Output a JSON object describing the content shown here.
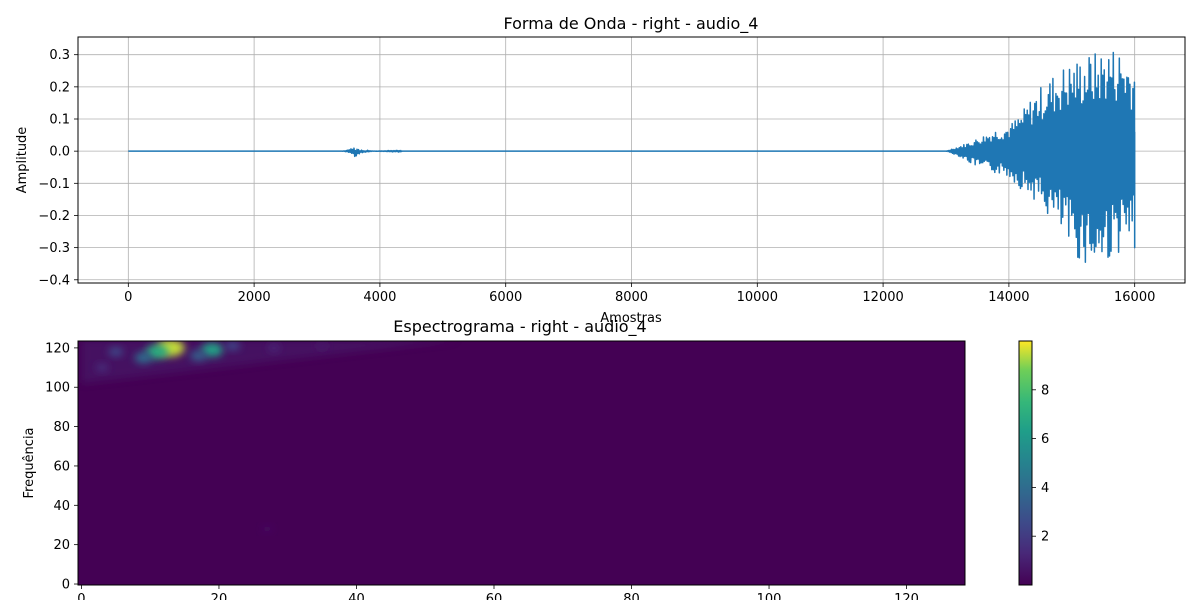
{
  "chart_data": [
    {
      "type": "line",
      "title": "Forma de Onda - right - audio_4",
      "xlabel": "Amostras",
      "ylabel": "Amplitude",
      "xlim": [
        -800,
        16800
      ],
      "ylim": [
        -0.41,
        0.355
      ],
      "xticks": [
        0,
        2000,
        4000,
        6000,
        8000,
        10000,
        12000,
        14000,
        16000
      ],
      "xtick_labels": [
        "0",
        "2000",
        "4000",
        "6000",
        "8000",
        "10000",
        "12000",
        "14000",
        "16000"
      ],
      "yticks": [
        0.3,
        0.2,
        0.1,
        0.0,
        -0.1,
        -0.2,
        -0.3,
        -0.4
      ],
      "ytick_labels": [
        "0.3",
        "0.2",
        "0.1",
        "0.0",
        "−0.1",
        "−0.2",
        "−0.3",
        "−0.4"
      ],
      "grid": true,
      "color": "#1f77b4",
      "series": [
        {
          "x": [
            0,
            3400,
            3500,
            3580,
            3600,
            3620,
            3640,
            3660,
            3700,
            3800,
            3900,
            4300,
            4330,
            4360,
            4500,
            13000,
            13200,
            13400,
            13600,
            13800,
            14000,
            14200,
            14400,
            14600,
            14800,
            15000,
            15200,
            15400,
            15600,
            15800,
            16000
          ],
          "y": [
            0,
            0,
            0.004,
            0.012,
            0.022,
            -0.02,
            0.015,
            -0.01,
            0.005,
            -0.003,
            0,
            0.003,
            -0.002,
            0,
            0,
            0,
            0.015,
            0.03,
            0.05,
            0.07,
            0.08,
            0.12,
            0.18,
            0.22,
            0.26,
            0.28,
            0.3,
            0.31,
            0.33,
            0.32,
            0.27
          ],
          "envelope_low": [
            0,
            0,
            -0.004,
            -0.01,
            -0.02,
            -0.02,
            -0.015,
            -0.01,
            -0.005,
            -0.003,
            0,
            -0.003,
            -0.002,
            0,
            0,
            0,
            -0.015,
            -0.04,
            -0.06,
            -0.07,
            -0.08,
            -0.12,
            -0.15,
            -0.2,
            -0.25,
            -0.33,
            -0.35,
            -0.38,
            -0.34,
            -0.31,
            -0.3
          ]
        }
      ]
    },
    {
      "type": "heatmap",
      "title": "Espectrograma - right - audio_4",
      "xlabel": "",
      "ylabel": "Frequência",
      "xlim": [
        -0.5,
        128.5
      ],
      "ylim": [
        -0.5,
        123.5
      ],
      "xticks": [
        0,
        20,
        40,
        60,
        80,
        100,
        120
      ],
      "xtick_labels": [
        "0",
        "20",
        "40",
        "60",
        "80",
        "100",
        "120"
      ],
      "yticks": [
        0,
        20,
        40,
        60,
        80,
        100,
        120
      ],
      "ytick_labels": [
        "0",
        "20",
        "40",
        "60",
        "80",
        "100",
        "120"
      ],
      "colormap": "viridis",
      "background_value": 0,
      "hotspots": [
        {
          "x": 13,
          "y": 120,
          "value": 9.5
        },
        {
          "x": 11,
          "y": 118,
          "value": 7.0
        },
        {
          "x": 19,
          "y": 119,
          "value": 6.5
        },
        {
          "x": 9,
          "y": 115,
          "value": 4.0
        },
        {
          "x": 17,
          "y": 116,
          "value": 3.5
        },
        {
          "x": 5,
          "y": 118,
          "value": 2.5
        },
        {
          "x": 22,
          "y": 121,
          "value": 2.5
        },
        {
          "x": 3,
          "y": 110,
          "value": 1.5
        },
        {
          "x": 28,
          "y": 120,
          "value": 1.2
        },
        {
          "x": 35,
          "y": 121,
          "value": 0.8
        },
        {
          "x": 27,
          "y": 28,
          "value": 0.4
        }
      ],
      "colorbar": {
        "min": 0,
        "max": 10,
        "ticks": [
          2,
          4,
          6,
          8
        ],
        "tick_labels": [
          "2",
          "4",
          "6",
          "8"
        ]
      }
    }
  ]
}
